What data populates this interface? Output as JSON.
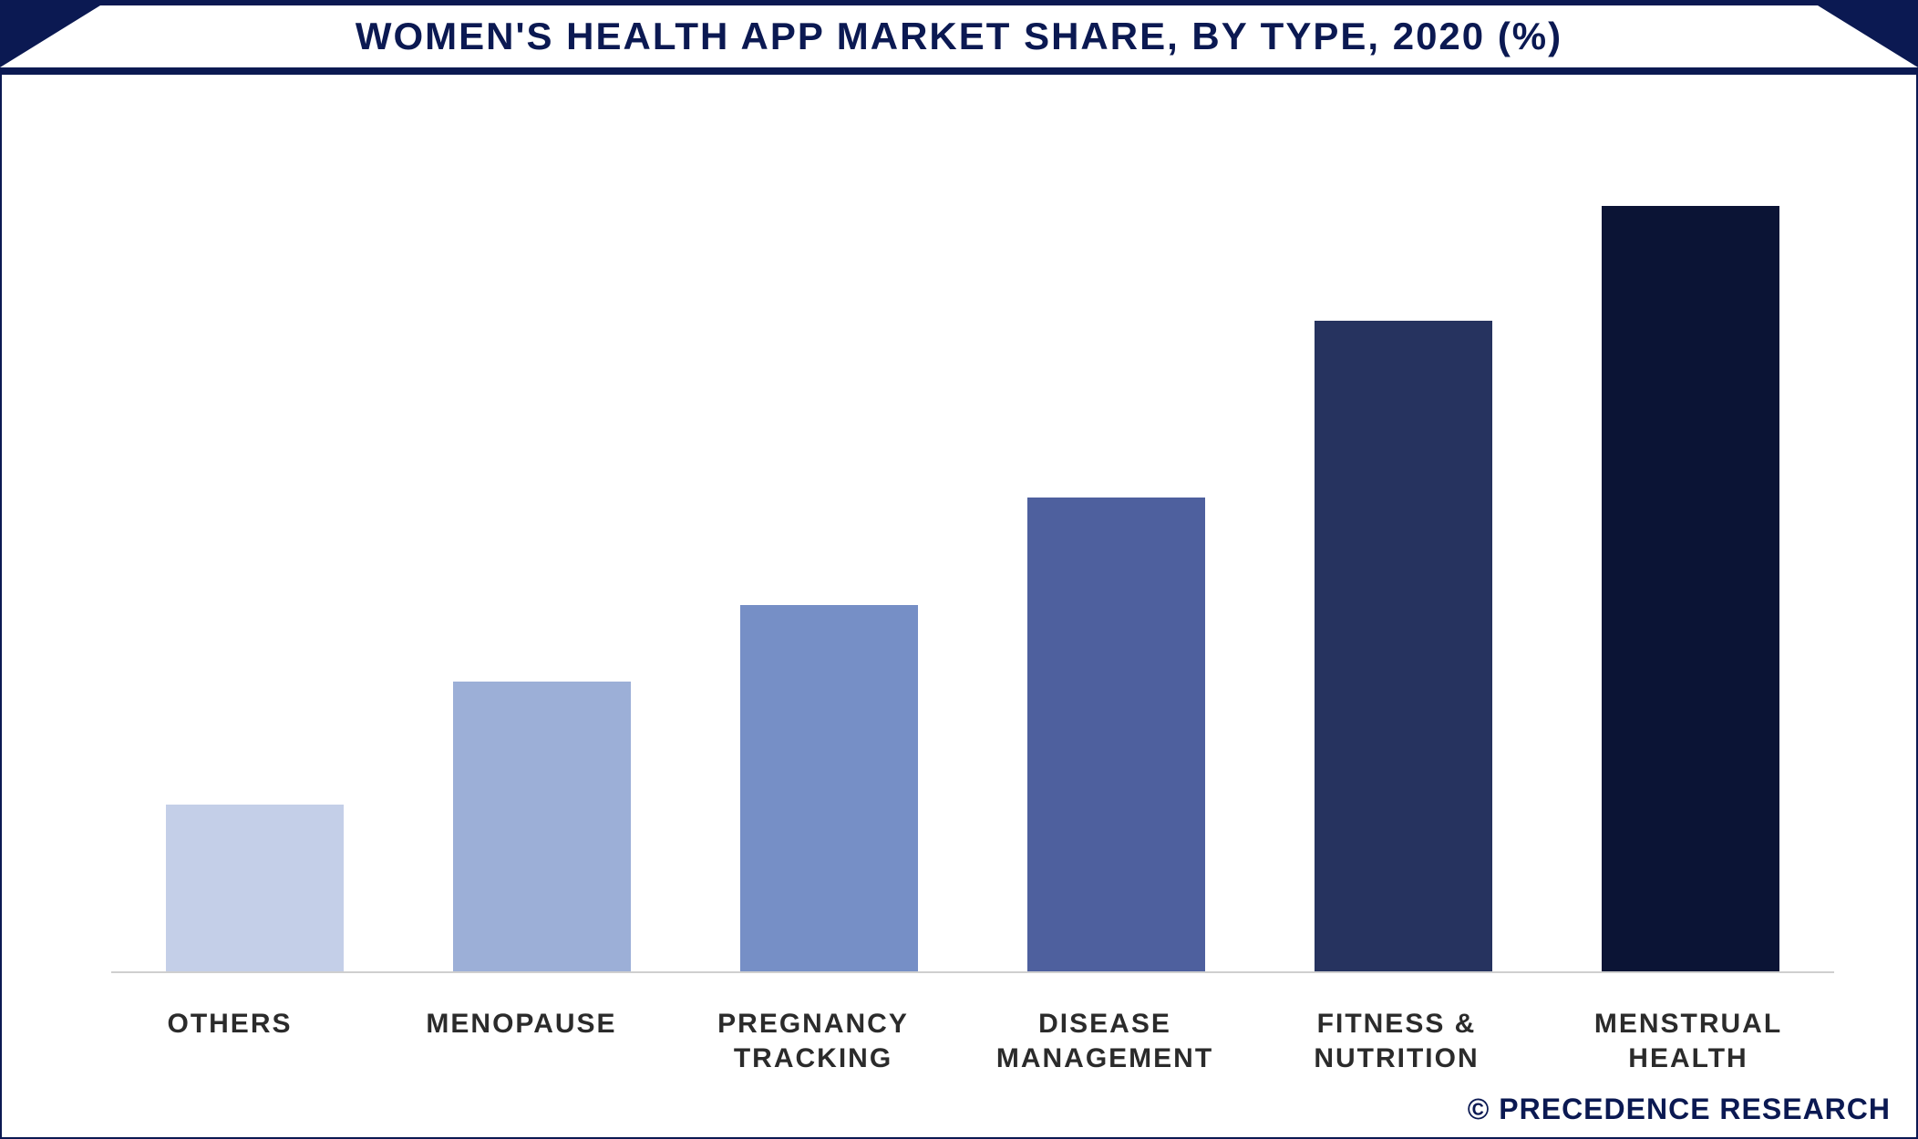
{
  "title": "WOMEN'S HEALTH APP MARKET SHARE, BY TYPE, 2020 (%)",
  "copyright": "© PRECEDENCE RESEARCH",
  "chart": {
    "type": "bar",
    "categories": [
      "OTHERS",
      "MENOPAUSE",
      "PREGNANCY TRACKING",
      "DISEASE MANAGEMENT",
      "FITNESS & NUTRITION",
      "MENSTRUAL HEALTH"
    ],
    "values": [
      22,
      38,
      48,
      62,
      85,
      100
    ],
    "bar_colors": [
      "#c4cfe8",
      "#9cafd7",
      "#768fc6",
      "#4e609e",
      "#26335f",
      "#0b1435"
    ],
    "ylim": [
      0,
      110
    ],
    "bar_width_pct": 62,
    "background_color": "#ffffff",
    "baseline_color": "#cfcfcf",
    "title_color": "#0b1952",
    "title_fontsize": 42,
    "label_color": "#2b2b2b",
    "label_fontsize": 30,
    "frame_border_color": "#0b1952"
  }
}
